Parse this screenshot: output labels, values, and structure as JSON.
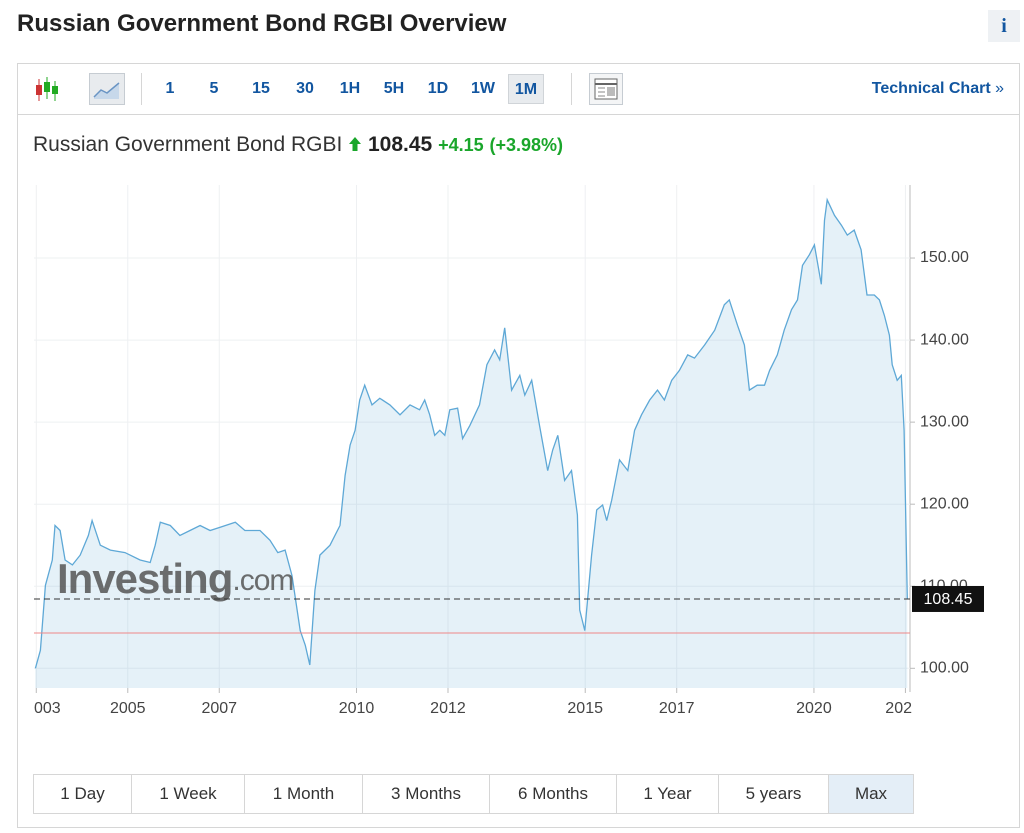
{
  "header": {
    "title": "Russian Government Bond RGBI Overview",
    "info": "i"
  },
  "toolbar": {
    "intervals": [
      {
        "label": "1"
      },
      {
        "label": "5"
      },
      {
        "label": "15"
      },
      {
        "label": "30"
      },
      {
        "label": "1H"
      },
      {
        "label": "5H"
      },
      {
        "label": "1D"
      },
      {
        "label": "1W"
      },
      {
        "label": "1M",
        "active": true
      }
    ],
    "technical_link": "Technical Chart",
    "more": "»"
  },
  "quote": {
    "name": "Russian Government Bond RGBI",
    "price": 108.45,
    "change": "+4.15",
    "change_pct": "(+3.98%)"
  },
  "chart_data": {
    "type": "area",
    "x": [
      2002.98,
      2003.09,
      2003.2,
      2003.35,
      2003.41,
      2003.52,
      2003.63,
      2003.79,
      2003.96,
      2004.14,
      2004.22,
      2004.4,
      2004.62,
      2004.94,
      2005.27,
      2005.49,
      2005.6,
      2005.71,
      2005.93,
      2006.14,
      2006.36,
      2006.58,
      2006.8,
      2007.02,
      2007.35,
      2007.56,
      2007.89,
      2008.11,
      2008.28,
      2008.44,
      2008.59,
      2008.77,
      2008.88,
      2008.98,
      2009.09,
      2009.2,
      2009.42,
      2009.64,
      2009.75,
      2009.86,
      2009.97,
      2010.07,
      2010.18,
      2010.34,
      2010.51,
      2010.73,
      2010.95,
      2011.17,
      2011.38,
      2011.49,
      2011.6,
      2011.71,
      2011.82,
      2011.93,
      2012.04,
      2012.21,
      2012.32,
      2012.48,
      2012.69,
      2012.85,
      2013.02,
      2013.13,
      2013.24,
      2013.39,
      2013.57,
      2013.68,
      2013.83,
      2014.0,
      2014.18,
      2014.29,
      2014.4,
      2014.55,
      2014.7,
      2014.83,
      2014.88,
      2014.99,
      2015.14,
      2015.25,
      2015.38,
      2015.47,
      2015.58,
      2015.75,
      2015.93,
      2016.08,
      2016.23,
      2016.41,
      2016.58,
      2016.73,
      2016.89,
      2017.06,
      2017.24,
      2017.39,
      2017.61,
      2017.83,
      2018.04,
      2018.15,
      2018.33,
      2018.48,
      2018.59,
      2018.76,
      2018.92,
      2019.03,
      2019.2,
      2019.35,
      2019.51,
      2019.64,
      2019.75,
      2019.9,
      2020.01,
      2020.16,
      2020.23,
      2020.29,
      2020.45,
      2020.6,
      2020.73,
      2020.88,
      2021.03,
      2021.16,
      2021.32,
      2021.43,
      2021.54,
      2021.65,
      2021.71,
      2021.82,
      2021.91,
      2021.97,
      2022.04
    ],
    "series": [
      {
        "color": "#5ea8d6",
        "values": [
          100.0,
          102.2,
          110.1,
          113.2,
          117.4,
          116.8,
          113.2,
          112.6,
          113.8,
          116.2,
          118.0,
          115.0,
          114.4,
          114.1,
          113.2,
          112.9,
          115.0,
          117.8,
          117.4,
          116.2,
          116.8,
          117.4,
          116.8,
          117.2,
          117.8,
          116.8,
          116.8,
          115.6,
          114.1,
          114.4,
          111.3,
          104.6,
          102.8,
          100.4,
          109.5,
          113.8,
          115.0,
          117.4,
          123.5,
          127.2,
          129.0,
          132.7,
          134.5,
          132.1,
          132.9,
          132.1,
          130.9,
          132.1,
          131.5,
          132.7,
          130.9,
          128.4,
          129.0,
          128.4,
          131.5,
          131.7,
          128.0,
          129.6,
          132.1,
          137.0,
          138.8,
          137.6,
          141.5,
          133.9,
          135.7,
          133.3,
          135.1,
          129.6,
          124.1,
          126.6,
          128.4,
          122.9,
          124.1,
          118.7,
          107.1,
          104.6,
          113.8,
          119.3,
          119.9,
          118.0,
          120.5,
          125.4,
          124.1,
          129.0,
          130.9,
          132.7,
          133.9,
          132.7,
          135.1,
          136.3,
          138.2,
          137.8,
          139.4,
          141.2,
          144.3,
          144.9,
          141.8,
          139.4,
          133.9,
          134.5,
          134.5,
          136.3,
          138.2,
          141.2,
          143.7,
          144.9,
          149.1,
          150.4,
          151.6,
          146.8,
          154.6,
          157.1,
          155.2,
          154.0,
          152.8,
          153.4,
          151.0,
          145.5,
          145.5,
          144.9,
          143.0,
          140.6,
          137.0,
          135.1,
          135.7,
          129.0,
          108.45
        ]
      }
    ],
    "xlim": [
      2002.95,
      2022.1
    ],
    "ylim": [
      97.6,
      158.9
    ],
    "xticks": [
      {
        "value": 2003,
        "label": "003"
      },
      2005,
      2007,
      2010,
      2012,
      2015,
      2017,
      2020,
      {
        "value": 2022,
        "label": "202"
      }
    ],
    "yticks": [
      {
        "value": 100,
        "label": "100.00"
      },
      {
        "value": 110,
        "label": "110.00"
      },
      {
        "value": 120,
        "label": "120.00"
      },
      {
        "value": 130,
        "label": "130.00"
      },
      {
        "value": 140,
        "label": "140.00"
      },
      {
        "value": 150,
        "label": "150.00"
      }
    ],
    "reference_line": 104.3,
    "grid": true
  },
  "watermark": "Investing",
  "watermark_suffix": ".com",
  "ranges": [
    {
      "label": "1 Day"
    },
    {
      "label": "1 Week"
    },
    {
      "label": "1 Month"
    },
    {
      "label": "3 Months"
    },
    {
      "label": "6 Months"
    },
    {
      "label": "1 Year"
    },
    {
      "label": "5 years"
    },
    {
      "label": "Max",
      "active": true
    }
  ]
}
